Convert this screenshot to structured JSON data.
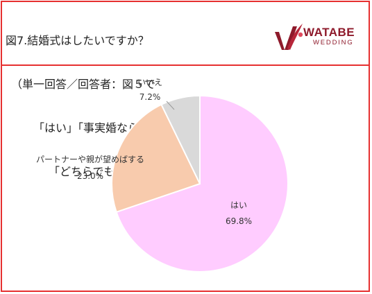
{
  "title_lines": [
    "図7.結婚式はしたいですか？",
    "（単一回答／回答者：図５で",
    "「はい」「事実婚ならしたい」",
    "「どちらでもいい」と答えた方447名）"
  ],
  "logo": {
    "main": "WATABE",
    "sub": "WEDDING",
    "color": "#8e1a2b"
  },
  "chart_data": {
    "type": "pie",
    "title": "",
    "slices": [
      {
        "label": "はい",
        "value": 69.8,
        "value_label": "69.8%",
        "color": "#ffccff"
      },
      {
        "label": "パートナーや親が望めばする",
        "value": 23.0,
        "value_label": "23.0%",
        "color": "#f8cbad"
      },
      {
        "label": "いいえ",
        "value": 7.2,
        "value_label": "7.2%",
        "color": "#d9d9d9"
      }
    ],
    "legend": "none"
  }
}
